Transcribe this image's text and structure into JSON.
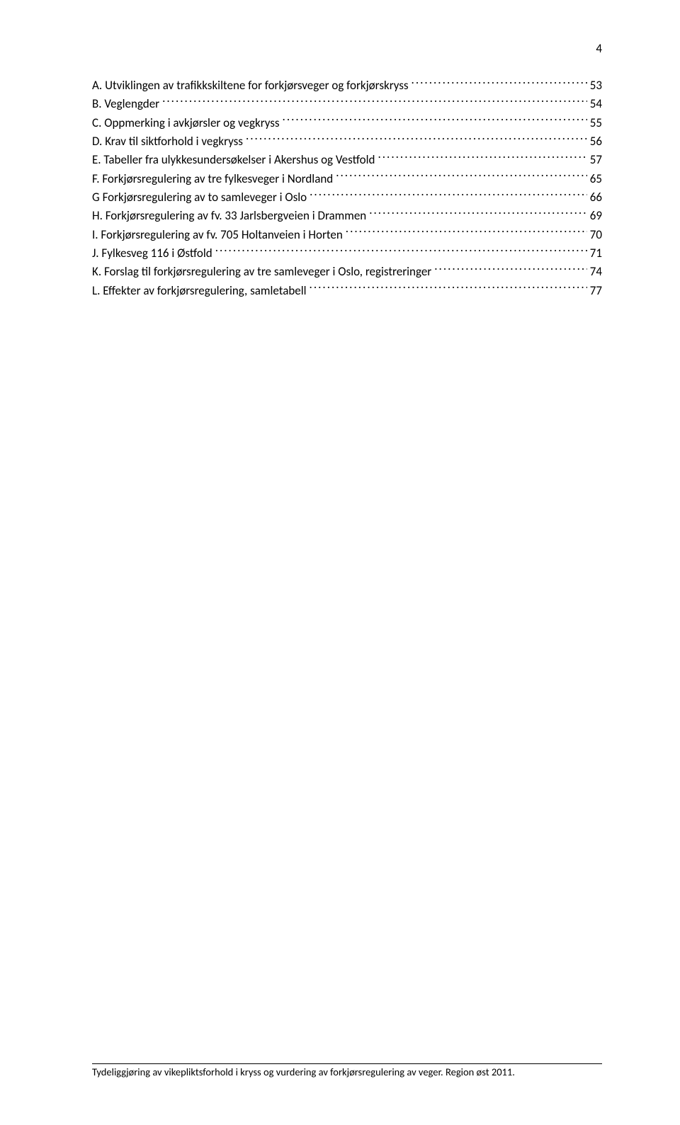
{
  "page_number": "4",
  "toc": [
    {
      "label": "A. Utviklingen av trafikkskiltene for forkjørsveger og forkjørskryss",
      "page": "53"
    },
    {
      "label": "B. Veglengder",
      "page": "54"
    },
    {
      "label": "C. Oppmerking i avkjørsler og vegkryss",
      "page": "55"
    },
    {
      "label": "D. Krav til siktforhold i vegkryss",
      "page": "56"
    },
    {
      "label": "E. Tabeller fra ulykkesundersøkelser i Akershus og Vestfold",
      "page": "57"
    },
    {
      "label": "F. Forkjørsregulering av tre fylkesveger i Nordland",
      "page": "65"
    },
    {
      "label": "G Forkjørsregulering av to samleveger i Oslo",
      "page": "66"
    },
    {
      "label": "H. Forkjørsregulering av fv. 33 Jarlsbergveien i Drammen",
      "page": "69"
    },
    {
      "label": "I.  Forkjørsregulering av fv. 705 Holtanveien i Horten",
      "page": "70"
    },
    {
      "label": "J.  Fylkesveg 116 i Østfold",
      "page": "71"
    },
    {
      "label": "K. Forslag til forkjørsregulering av tre samleveger i Oslo, registreringer",
      "page": "74"
    },
    {
      "label": "L. Effekter av forkjørsregulering, samletabell",
      "page": "77"
    }
  ],
  "footer": "Tydeliggjøring av vikepliktsforhold i kryss og vurdering av forkjørsregulering av veger. Region øst 2011."
}
